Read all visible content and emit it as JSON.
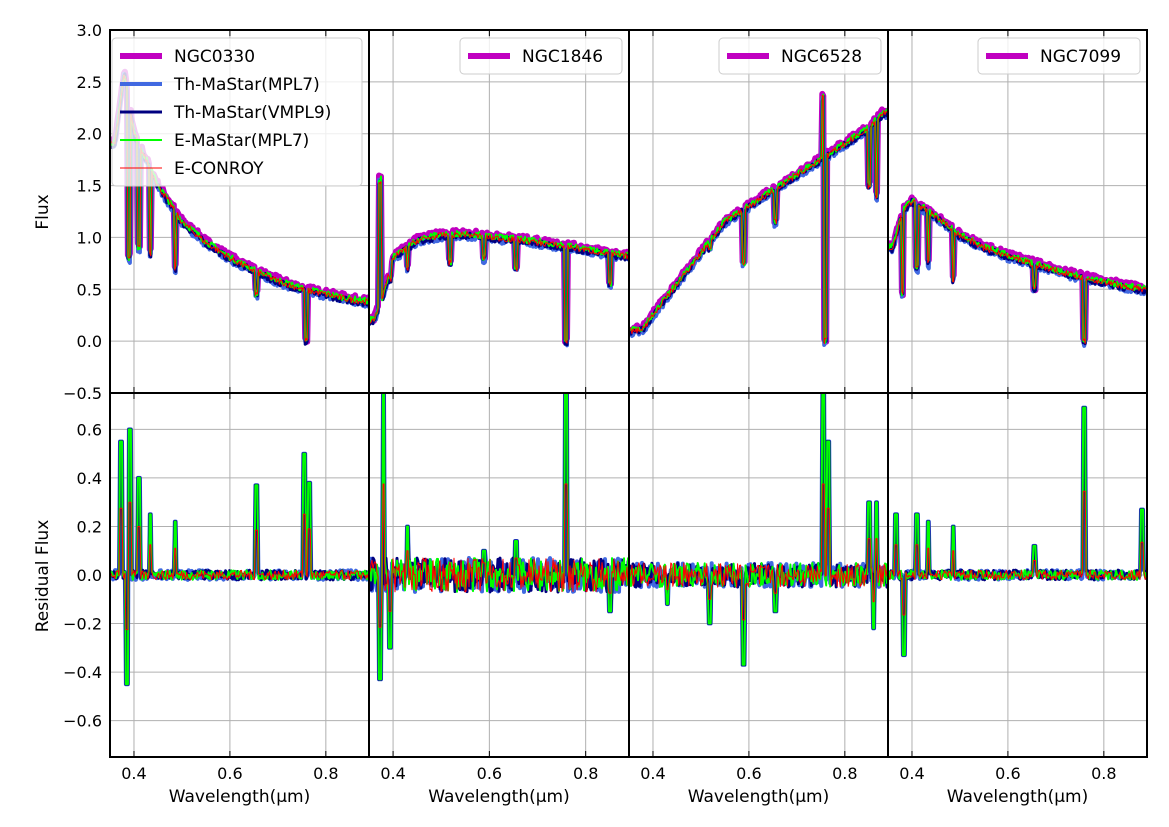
{
  "colors": {
    "magenta": "#c000c0",
    "royalblue": "#4169e1",
    "navy": "#000080",
    "lime": "#00ff00",
    "red": "#ff0000",
    "grid": "#b0b0b0"
  },
  "chart_data": {
    "type": "line",
    "ylabel_top": "Flux",
    "ylabel_bottom": "Residual Flux",
    "xlabel": "Wavelength(μm)",
    "xlim": [
      0.35,
      0.89
    ],
    "ylim_top": [
      -0.5,
      3.0
    ],
    "ylim_bottom": [
      -0.75,
      0.75
    ],
    "xticks": [
      0.4,
      0.6,
      0.8
    ],
    "yticks_top": [
      -0.5,
      0.0,
      0.5,
      1.0,
      1.5,
      2.0,
      2.5,
      3.0
    ],
    "yticks_bottom": [
      -0.6,
      -0.4,
      -0.2,
      0.0,
      0.2,
      0.4,
      0.6
    ],
    "grid": true,
    "legend_location": "top-right",
    "series_names": [
      "Th-MaStar(MPL7)",
      "Th-MaStar(VMPL9)",
      "E-MaStar(MPL7)",
      "E-CONROY"
    ],
    "panels": [
      {
        "name": "NGC0330",
        "flux": {
          "x": [
            0.36,
            0.38,
            0.4,
            0.45,
            0.5,
            0.55,
            0.6,
            0.65,
            0.7,
            0.75,
            0.8,
            0.85,
            0.88
          ],
          "y": [
            1.9,
            2.6,
            2.0,
            1.5,
            1.15,
            0.95,
            0.8,
            0.68,
            0.58,
            0.5,
            0.45,
            0.4,
            0.38
          ]
        },
        "lines": [
          {
            "x": 0.39,
            "y": 0.8
          },
          {
            "x": 0.41,
            "y": 0.9
          },
          {
            "x": 0.434,
            "y": 0.85
          },
          {
            "x": 0.486,
            "y": 0.7
          },
          {
            "x": 0.656,
            "y": 0.45
          },
          {
            "x": 0.76,
            "y": 0.0
          }
        ],
        "resid_spikes": [
          {
            "x": 0.373,
            "y": 0.55
          },
          {
            "x": 0.385,
            "y": -0.45
          },
          {
            "x": 0.392,
            "y": 0.6
          },
          {
            "x": 0.41,
            "y": 0.4
          },
          {
            "x": 0.434,
            "y": 0.25
          },
          {
            "x": 0.486,
            "y": 0.22
          },
          {
            "x": 0.656,
            "y": 0.37
          },
          {
            "x": 0.755,
            "y": 0.5
          },
          {
            "x": 0.766,
            "y": 0.38
          }
        ],
        "resid_amp": 0.02
      },
      {
        "name": "NGC1846",
        "flux": {
          "x": [
            0.36,
            0.38,
            0.4,
            0.45,
            0.5,
            0.55,
            0.6,
            0.65,
            0.7,
            0.75,
            0.8,
            0.85,
            0.88
          ],
          "y": [
            0.2,
            0.45,
            0.8,
            0.97,
            1.02,
            1.03,
            1.0,
            0.98,
            0.95,
            0.92,
            0.88,
            0.84,
            0.82
          ]
        },
        "lines": [
          {
            "x": 0.373,
            "y": 1.55
          },
          {
            "x": 0.393,
            "y": 0.6
          },
          {
            "x": 0.43,
            "y": 0.7
          },
          {
            "x": 0.518,
            "y": 0.75
          },
          {
            "x": 0.589,
            "y": 0.8
          },
          {
            "x": 0.656,
            "y": 0.7
          },
          {
            "x": 0.76,
            "y": 0.0
          },
          {
            "x": 0.85,
            "y": 0.55
          }
        ],
        "resid_spikes": [
          {
            "x": 0.373,
            "y": -0.43
          },
          {
            "x": 0.38,
            "y": 0.75
          },
          {
            "x": 0.393,
            "y": -0.3
          },
          {
            "x": 0.43,
            "y": 0.2
          },
          {
            "x": 0.589,
            "y": 0.1
          },
          {
            "x": 0.656,
            "y": 0.14
          },
          {
            "x": 0.76,
            "y": 0.75
          },
          {
            "x": 0.85,
            "y": -0.15
          }
        ],
        "resid_amp": 0.07
      },
      {
        "name": "NGC6528",
        "flux": {
          "x": [
            0.36,
            0.38,
            0.4,
            0.45,
            0.5,
            0.55,
            0.6,
            0.65,
            0.7,
            0.75,
            0.8,
            0.85,
            0.88
          ],
          "y": [
            0.1,
            0.12,
            0.25,
            0.55,
            0.85,
            1.15,
            1.3,
            1.45,
            1.6,
            1.75,
            1.9,
            2.05,
            2.2
          ]
        },
        "lines": [
          {
            "x": 0.518,
            "y": 0.9
          },
          {
            "x": 0.589,
            "y": 0.75
          },
          {
            "x": 0.656,
            "y": 1.15
          },
          {
            "x": 0.755,
            "y": 2.35
          },
          {
            "x": 0.76,
            "y": 0.0
          },
          {
            "x": 0.85,
            "y": 1.5
          },
          {
            "x": 0.866,
            "y": 1.4
          }
        ],
        "resid_spikes": [
          {
            "x": 0.43,
            "y": -0.12
          },
          {
            "x": 0.518,
            "y": -0.2
          },
          {
            "x": 0.589,
            "y": -0.37
          },
          {
            "x": 0.656,
            "y": -0.15
          },
          {
            "x": 0.755,
            "y": 0.75
          },
          {
            "x": 0.766,
            "y": 0.55
          },
          {
            "x": 0.85,
            "y": 0.3
          },
          {
            "x": 0.86,
            "y": -0.22
          },
          {
            "x": 0.866,
            "y": 0.3
          }
        ],
        "resid_amp": 0.05
      },
      {
        "name": "NGC7099",
        "flux": {
          "x": [
            0.36,
            0.38,
            0.4,
            0.45,
            0.5,
            0.55,
            0.6,
            0.65,
            0.7,
            0.75,
            0.8,
            0.85,
            0.88
          ],
          "y": [
            0.9,
            1.25,
            1.35,
            1.2,
            1.02,
            0.9,
            0.82,
            0.75,
            0.68,
            0.62,
            0.57,
            0.52,
            0.5
          ]
        },
        "lines": [
          {
            "x": 0.38,
            "y": 0.45
          },
          {
            "x": 0.41,
            "y": 0.7
          },
          {
            "x": 0.434,
            "y": 0.75
          },
          {
            "x": 0.486,
            "y": 0.6
          },
          {
            "x": 0.656,
            "y": 0.5
          },
          {
            "x": 0.76,
            "y": 0.0
          }
        ],
        "resid_spikes": [
          {
            "x": 0.366,
            "y": 0.25
          },
          {
            "x": 0.383,
            "y": -0.33
          },
          {
            "x": 0.41,
            "y": 0.25
          },
          {
            "x": 0.434,
            "y": 0.22
          },
          {
            "x": 0.486,
            "y": 0.2
          },
          {
            "x": 0.656,
            "y": 0.12
          },
          {
            "x": 0.76,
            "y": 0.69
          },
          {
            "x": 0.88,
            "y": 0.27
          }
        ],
        "resid_amp": 0.02
      }
    ]
  }
}
